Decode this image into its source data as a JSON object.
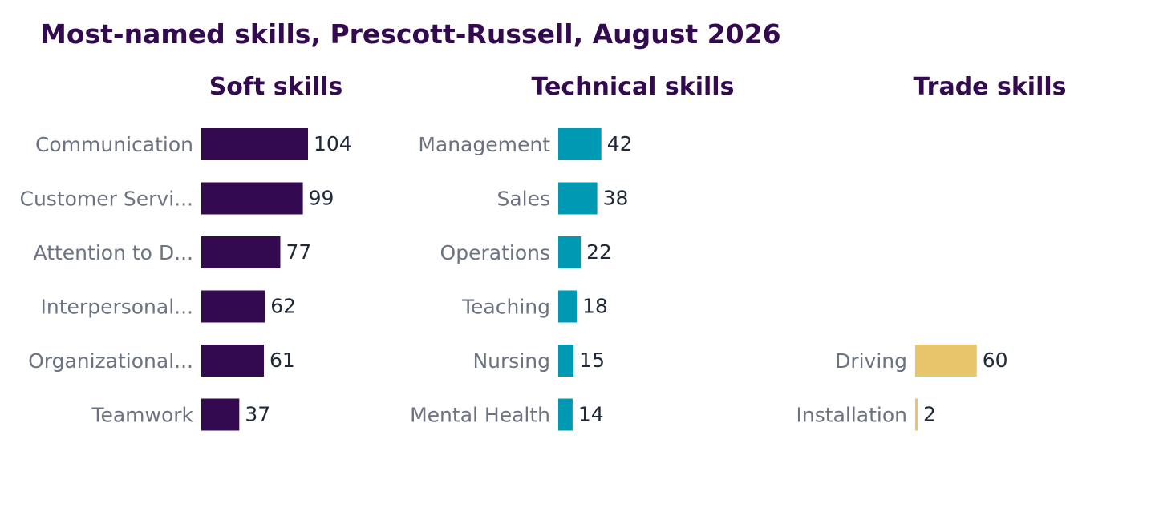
{
  "chart_data": {
    "type": "bar",
    "orientation": "horizontal",
    "title": "Most-named skills, Prescott-Russell, August 2026",
    "panels": [
      {
        "title": "Soft skills",
        "color": "#33094f",
        "categories": [
          "Communication",
          "Customer Servi...",
          "Attention to D...",
          "Interpersonal...",
          "Organizational...",
          "Teamwork"
        ],
        "values": [
          104,
          99,
          77,
          62,
          61,
          37
        ]
      },
      {
        "title": "Technical skills",
        "color": "#0099b4",
        "categories": [
          "Management",
          "Sales",
          "Operations",
          "Teaching",
          "Nursing",
          "Mental Health"
        ],
        "values": [
          42,
          38,
          22,
          18,
          15,
          14
        ]
      },
      {
        "title": "Trade skills",
        "color": "#e8c46a",
        "categories": [
          "",
          "",
          "",
          "",
          "Driving",
          "Installation"
        ],
        "values": [
          null,
          null,
          null,
          null,
          60,
          2
        ]
      }
    ]
  }
}
